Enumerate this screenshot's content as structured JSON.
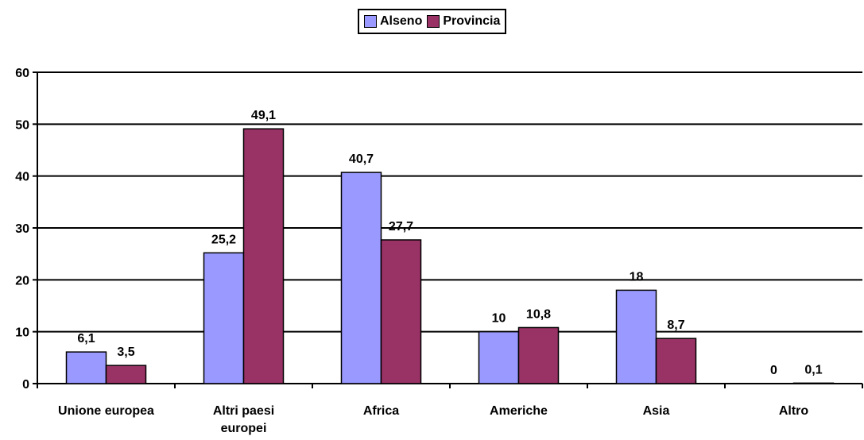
{
  "chart_data": {
    "type": "bar",
    "categories": [
      "Unione europea",
      "Altri paesi europei",
      "Africa",
      "Americhe",
      "Asia",
      "Altro"
    ],
    "category_lines": [
      [
        "Unione europea"
      ],
      [
        "Altri paesi",
        "europei"
      ],
      [
        "Africa"
      ],
      [
        "Americhe"
      ],
      [
        "Asia"
      ],
      [
        "Altro"
      ]
    ],
    "series": [
      {
        "name": "Alseno",
        "color": "#9999ff",
        "values": [
          6.1,
          25.2,
          40.7,
          10,
          18,
          0
        ],
        "labels": [
          "6,1",
          "25,2",
          "40,7",
          "10",
          "18",
          "0"
        ]
      },
      {
        "name": "Provincia",
        "color": "#993366",
        "values": [
          3.5,
          49.1,
          27.7,
          10.8,
          8.7,
          0.1
        ],
        "labels": [
          "3,5",
          "49,1",
          "27,7",
          "10,8",
          "8,7",
          "0,1"
        ]
      }
    ],
    "ylim": [
      0,
      60
    ],
    "yticks": [
      0,
      10,
      20,
      30,
      40,
      50,
      60
    ],
    "grid": true,
    "legend": "top-center",
    "title": "",
    "xlabel": "",
    "ylabel": ""
  }
}
